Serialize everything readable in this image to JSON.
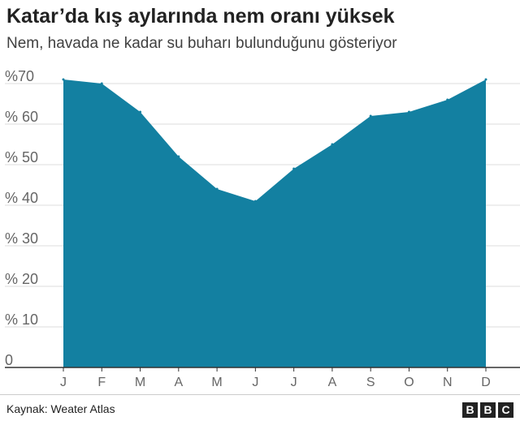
{
  "chart_data": {
    "type": "area",
    "title": "Katar’da kış aylarında nem oranı yüksek",
    "subtitle": "Nem, havada ne kadar su buharı bulunduğunu gösteriyor",
    "categories": [
      "J",
      "F",
      "M",
      "A",
      "M",
      "J",
      "J",
      "A",
      "S",
      "O",
      "N",
      "D"
    ],
    "values": [
      71,
      70,
      63,
      52,
      44,
      41,
      49,
      55,
      62,
      63,
      66,
      71
    ],
    "ylim": [
      0,
      70
    ],
    "yticks": [
      {
        "value": 70,
        "label": "%70"
      },
      {
        "value": 60,
        "label": "% 60"
      },
      {
        "value": 50,
        "label": "% 50"
      },
      {
        "value": 40,
        "label": "% 40"
      },
      {
        "value": 30,
        "label": "% 30"
      },
      {
        "value": 20,
        "label": "% 20"
      },
      {
        "value": 10,
        "label": "% 10"
      },
      {
        "value": 0,
        "label": "0"
      }
    ],
    "grid": true,
    "fill_color": "#1380a1"
  },
  "footer": {
    "source": "Kaynak: Weater Atlas",
    "logo_letters": [
      "B",
      "B",
      "C"
    ]
  }
}
